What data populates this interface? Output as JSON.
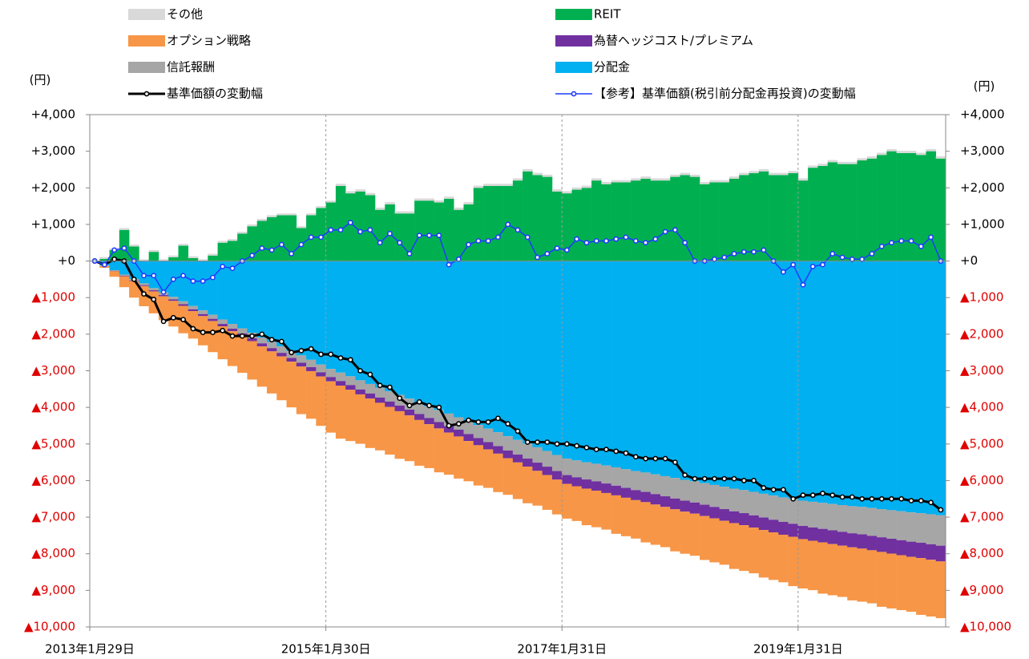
{
  "chart_data": {
    "type": "stacked_bar_line",
    "ylabel": "(円)",
    "y2label": "(円)",
    "categories": [
      "2013年1月29日",
      null,
      null,
      null,
      null,
      null,
      null,
      null,
      null,
      null,
      null,
      null,
      null,
      null,
      null,
      null,
      null,
      null,
      null,
      null,
      null,
      null,
      null,
      null,
      "2015年1月30日",
      null,
      null,
      null,
      null,
      null,
      null,
      null,
      null,
      null,
      null,
      null,
      null,
      null,
      null,
      null,
      null,
      null,
      null,
      null,
      null,
      null,
      null,
      null,
      "2017年1月31日",
      null,
      null,
      null,
      null,
      null,
      null,
      null,
      null,
      null,
      null,
      null,
      null,
      null,
      null,
      null,
      null,
      null,
      null,
      null,
      null,
      null,
      null,
      null,
      "2019年1月31日",
      null,
      null,
      null,
      null,
      null,
      null,
      null,
      null,
      null,
      null,
      null,
      null,
      null,
      null
    ],
    "ylim": [
      -10000,
      4000
    ],
    "yticks": [
      {
        "value": 4000,
        "label": "+4,000"
      },
      {
        "value": 3000,
        "label": "+3,000"
      },
      {
        "value": 2000,
        "label": "+2,000"
      },
      {
        "value": 1000,
        "label": "+1,000"
      },
      {
        "value": 0,
        "label": "+0"
      },
      {
        "value": -1000,
        "label": "▲1,000"
      },
      {
        "value": -2000,
        "label": "▲2,000"
      },
      {
        "value": -3000,
        "label": "▲3,000"
      },
      {
        "value": -4000,
        "label": "▲4,000"
      },
      {
        "value": -5000,
        "label": "▲5,000"
      },
      {
        "value": -6000,
        "label": "▲6,000"
      },
      {
        "value": -7000,
        "label": "▲7,000"
      },
      {
        "value": -8000,
        "label": "▲8,000"
      },
      {
        "value": -9000,
        "label": "▲9,000"
      },
      {
        "value": -10000,
        "label": "▲10,000"
      }
    ],
    "y2lim": [
      -10000,
      4000
    ],
    "y2ticks": [
      {
        "value": 4000,
        "label": "+4,000"
      },
      {
        "value": 3000,
        "label": "+3,000"
      },
      {
        "value": 2000,
        "label": "+2,000"
      },
      {
        "value": 1000,
        "label": "+1,000"
      },
      {
        "value": 0,
        "label": "+0"
      },
      {
        "value": -1000,
        "label": "▲1,000"
      },
      {
        "value": -2000,
        "label": "▲2,000"
      },
      {
        "value": -3000,
        "label": "▲3,000"
      },
      {
        "value": -4000,
        "label": "▲4,000"
      },
      {
        "value": -5000,
        "label": "▲5,000"
      },
      {
        "value": -6000,
        "label": "▲6,000"
      },
      {
        "value": -7000,
        "label": "▲7,000"
      },
      {
        "value": -8000,
        "label": "▲8,000"
      },
      {
        "value": -9000,
        "label": "▲9,000"
      },
      {
        "value": -10000,
        "label": "▲10,000"
      }
    ],
    "x_grid": true,
    "series": [
      {
        "name": "その他",
        "kind": "bar",
        "color": "#d9d9d9",
        "values": [
          0,
          50,
          50,
          50,
          50,
          50,
          50,
          50,
          50,
          50,
          50,
          50,
          50,
          50,
          50,
          50,
          50,
          50,
          50,
          50,
          50,
          50,
          50,
          50,
          50,
          60,
          60,
          60,
          60,
          60,
          60,
          60,
          60,
          60,
          60,
          60,
          60,
          60,
          60,
          60,
          60,
          60,
          60,
          60,
          60,
          60,
          60,
          60,
          60,
          60,
          60,
          60,
          60,
          60,
          60,
          60,
          60,
          60,
          60,
          60,
          60,
          60,
          60,
          60,
          60,
          60,
          60,
          60,
          60,
          60,
          60,
          60,
          60,
          60,
          60,
          60,
          60,
          60,
          60,
          60,
          60,
          60,
          60,
          60,
          60,
          60,
          60
        ]
      },
      {
        "name": "REIT",
        "kind": "bar",
        "color": "#00b050",
        "values": [
          0,
          60,
          300,
          850,
          400,
          0,
          250,
          0,
          100,
          420,
          80,
          0,
          150,
          500,
          550,
          750,
          950,
          1100,
          1200,
          1250,
          1250,
          900,
          1250,
          1450,
          1600,
          2050,
          1850,
          1900,
          1800,
          1400,
          1550,
          1300,
          1300,
          1650,
          1650,
          1600,
          1700,
          1400,
          1550,
          2000,
          2050,
          2050,
          2050,
          2200,
          2450,
          2350,
          2300,
          1900,
          1850,
          1950,
          2000,
          2200,
          2100,
          2150,
          2150,
          2200,
          2250,
          2200,
          2200,
          2300,
          2350,
          2300,
          2100,
          2150,
          2150,
          2250,
          2350,
          2400,
          2450,
          2350,
          2350,
          2400,
          2200,
          2550,
          2600,
          2700,
          2650,
          2650,
          2750,
          2800,
          2900,
          3000,
          2950,
          2950,
          2900,
          3000,
          2800
        ]
      },
      {
        "name": "オプション戦略",
        "kind": "bar",
        "color": "#f79646",
        "values": [
          0,
          -50,
          -150,
          -300,
          -450,
          -550,
          -600,
          -650,
          -700,
          -750,
          -750,
          -800,
          -850,
          -900,
          -950,
          -1000,
          -1050,
          -1100,
          -1150,
          -1200,
          -1250,
          -1300,
          -1300,
          -1350,
          -1400,
          -1450,
          -1400,
          -1350,
          -1350,
          -1300,
          -1300,
          -1300,
          -1250,
          -1250,
          -1200,
          -1200,
          -1150,
          -1150,
          -1100,
          -1100,
          -1050,
          -1050,
          -1000,
          -1000,
          -1000,
          -950,
          -950,
          -950,
          -950,
          -950,
          -1000,
          -1000,
          -1000,
          -1050,
          -1050,
          -1050,
          -1100,
          -1100,
          -1100,
          -1150,
          -1150,
          -1150,
          -1200,
          -1200,
          -1200,
          -1250,
          -1250,
          -1250,
          -1300,
          -1300,
          -1300,
          -1350,
          -1350,
          -1350,
          -1400,
          -1400,
          -1400,
          -1450,
          -1450,
          -1450,
          -1500,
          -1500,
          -1500,
          -1500,
          -1550,
          -1550,
          -1550
        ]
      },
      {
        "name": "為替ヘッジコスト/プレミアム",
        "kind": "bar",
        "color": "#7030a0",
        "values": [
          0,
          -5,
          -10,
          -15,
          -20,
          -25,
          -30,
          -35,
          -40,
          -45,
          -50,
          -55,
          -60,
          -65,
          -70,
          -75,
          -80,
          -85,
          -90,
          -95,
          -100,
          -105,
          -110,
          -115,
          -120,
          -125,
          -130,
          -135,
          -140,
          -145,
          -150,
          -155,
          -160,
          -165,
          -170,
          -175,
          -180,
          -185,
          -190,
          -195,
          -200,
          -205,
          -210,
          -215,
          -220,
          -225,
          -230,
          -235,
          -240,
          -245,
          -250,
          -255,
          -260,
          -265,
          -270,
          -275,
          -280,
          -285,
          -290,
          -295,
          -300,
          -305,
          -310,
          -315,
          -320,
          -325,
          -330,
          -335,
          -340,
          -345,
          -350,
          -355,
          -360,
          -365,
          -370,
          -375,
          -380,
          -385,
          -390,
          -395,
          -400,
          -405,
          -410,
          -415,
          -420,
          -425,
          -430
        ]
      },
      {
        "name": "信託報酬",
        "kind": "bar",
        "color": "#a6a6a6",
        "values": [
          0,
          -10,
          -20,
          -30,
          -40,
          -50,
          -60,
          -70,
          -70,
          -80,
          -90,
          -100,
          -110,
          -120,
          -130,
          -140,
          -150,
          -160,
          -170,
          -180,
          -190,
          -200,
          -200,
          -210,
          -220,
          -230,
          -240,
          -250,
          -260,
          -270,
          -280,
          -290,
          -300,
          -310,
          -320,
          -330,
          -340,
          -340,
          -350,
          -360,
          -370,
          -380,
          -390,
          -400,
          -410,
          -420,
          -430,
          -440,
          -450,
          -460,
          -470,
          -480,
          -490,
          -500,
          -510,
          -520,
          -530,
          -540,
          -550,
          -560,
          -570,
          -580,
          -590,
          -600,
          -610,
          -620,
          -630,
          -640,
          -650,
          -660,
          -670,
          -680,
          -690,
          -700,
          -710,
          -720,
          -730,
          -740,
          -750,
          -760,
          -770,
          -780,
          -790,
          -800,
          -810,
          -820,
          -830
        ]
      },
      {
        "name": "分配金",
        "kind": "bar",
        "color": "#00b0f0",
        "values": [
          0,
          -120,
          -250,
          -370,
          -490,
          -610,
          -740,
          -860,
          -980,
          -1100,
          -1230,
          -1350,
          -1470,
          -1600,
          -1720,
          -1840,
          -1960,
          -2090,
          -2210,
          -2330,
          -2460,
          -2580,
          -2700,
          -2830,
          -2950,
          -3050,
          -3150,
          -3260,
          -3360,
          -3460,
          -3560,
          -3660,
          -3760,
          -3870,
          -3970,
          -4070,
          -4170,
          -4270,
          -4380,
          -4480,
          -4580,
          -4680,
          -4790,
          -4890,
          -4990,
          -5090,
          -5190,
          -5300,
          -5400,
          -5450,
          -5500,
          -5540,
          -5590,
          -5640,
          -5690,
          -5740,
          -5780,
          -5830,
          -5880,
          -5930,
          -5980,
          -6020,
          -6070,
          -6120,
          -6170,
          -6220,
          -6260,
          -6310,
          -6360,
          -6410,
          -6460,
          -6500,
          -6550,
          -6580,
          -6610,
          -6640,
          -6670,
          -6700,
          -6720,
          -6750,
          -6780,
          -6810,
          -6840,
          -6870,
          -6890,
          -6920,
          -6950
        ]
      },
      {
        "name": "基準価額の変動幅",
        "kind": "line",
        "color": "#000000",
        "values": [
          0,
          -100,
          50,
          0,
          -500,
          -900,
          -1050,
          -1650,
          -1550,
          -1600,
          -1850,
          -1950,
          -1950,
          -1900,
          -2050,
          -2050,
          -2050,
          -2000,
          -2150,
          -2200,
          -2500,
          -2450,
          -2400,
          -2550,
          -2550,
          -2650,
          -2700,
          -3000,
          -3100,
          -3400,
          -3450,
          -3750,
          -3950,
          -3850,
          -3950,
          -4000,
          -4500,
          -4450,
          -4350,
          -4400,
          -4400,
          -4300,
          -4450,
          -4650,
          -4950,
          -4950,
          -4950,
          -5000,
          -5000,
          -5050,
          -5100,
          -5150,
          -5150,
          -5200,
          -5250,
          -5350,
          -5400,
          -5400,
          -5400,
          -5500,
          -5850,
          -5950,
          -5950,
          -5950,
          -5950,
          -5950,
          -6000,
          -6000,
          -6200,
          -6250,
          -6250,
          -6500,
          -6400,
          -6400,
          -6350,
          -6400,
          -6450,
          -6450,
          -6500,
          -6500,
          -6500,
          -6500,
          -6500,
          -6550,
          -6550,
          -6600,
          -6800
        ]
      },
      {
        "name": "【参考】基準価額(税引前分配金再投資)の変動幅",
        "kind": "line",
        "color": "#1f3cff",
        "values": [
          0,
          -100,
          300,
          350,
          0,
          -400,
          -400,
          -850,
          -500,
          -400,
          -550,
          -550,
          -450,
          -150,
          -200,
          0,
          150,
          350,
          300,
          450,
          200,
          450,
          650,
          650,
          850,
          850,
          1050,
          800,
          850,
          500,
          750,
          500,
          200,
          700,
          700,
          700,
          -100,
          50,
          450,
          550,
          550,
          650,
          1000,
          850,
          650,
          100,
          200,
          350,
          300,
          600,
          500,
          550,
          550,
          600,
          650,
          550,
          500,
          600,
          800,
          850,
          500,
          0,
          0,
          50,
          100,
          200,
          250,
          250,
          300,
          0,
          -300,
          -100,
          -650,
          -150,
          -100,
          200,
          100,
          50,
          50,
          200,
          400,
          500,
          550,
          550,
          400,
          650,
          0
        ]
      }
    ]
  }
}
